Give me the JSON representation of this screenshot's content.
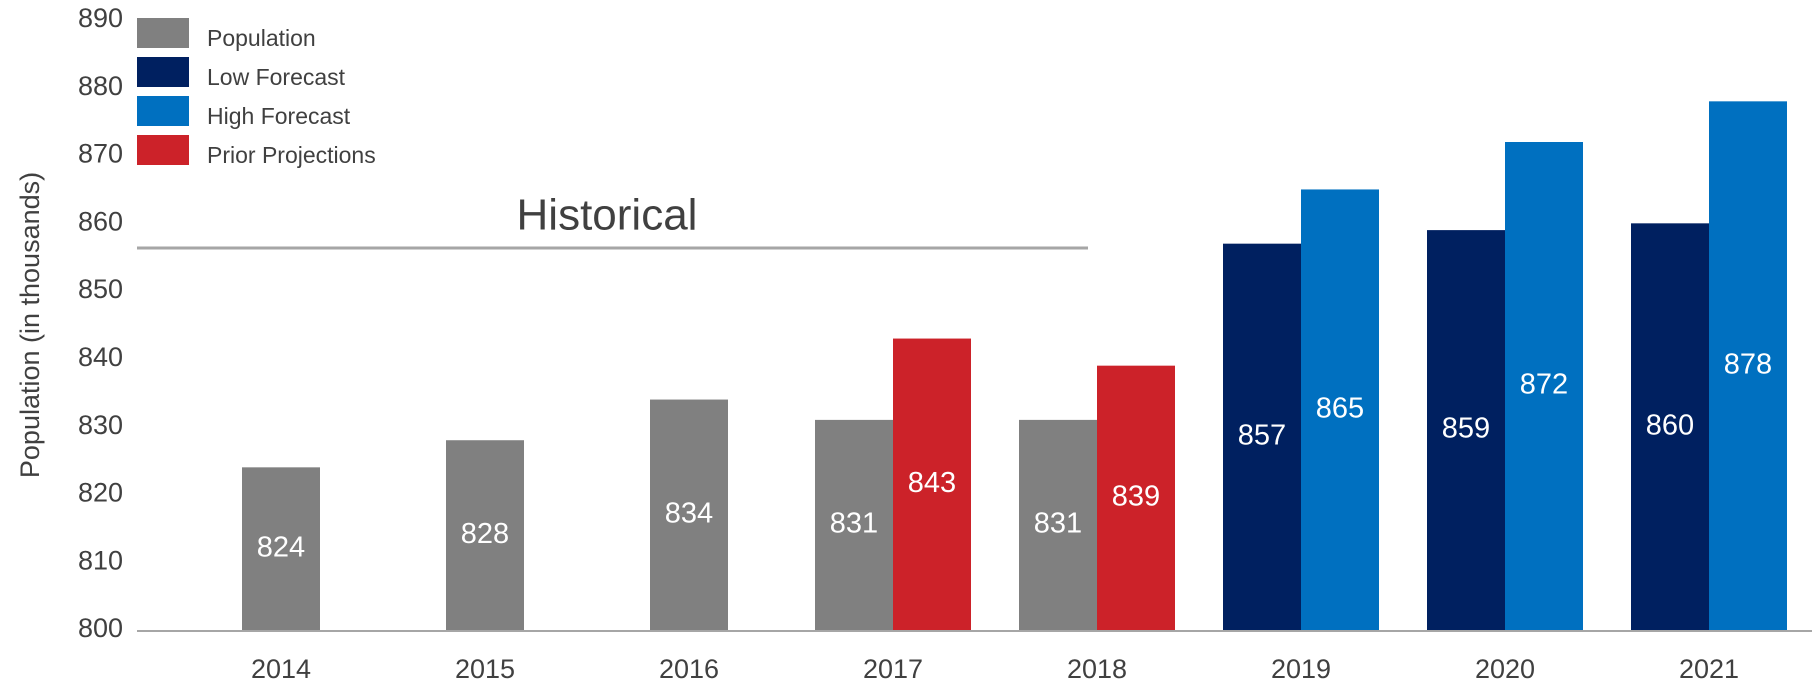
{
  "chart_data": {
    "type": "bar",
    "ylabel": "Population (in thousands)",
    "annotation": "Historical",
    "categories": [
      "2014",
      "2015",
      "2016",
      "2017",
      "2018",
      "2019",
      "2020",
      "2021"
    ],
    "series": [
      {
        "name": "Population",
        "color": "#808080",
        "values": [
          824,
          828,
          834,
          831,
          831,
          null,
          null,
          null
        ]
      },
      {
        "name": "Low Forecast",
        "color": "#002060",
        "values": [
          null,
          null,
          null,
          null,
          null,
          857,
          859,
          860
        ]
      },
      {
        "name": "High Forecast",
        "color": "#0070c0",
        "values": [
          null,
          null,
          null,
          null,
          null,
          865,
          872,
          878
        ]
      },
      {
        "name": "Prior Projections",
        "color": "#cc2229",
        "values": [
          null,
          null,
          null,
          843,
          839,
          null,
          null,
          null
        ]
      }
    ],
    "ylim": [
      800,
      890
    ],
    "yticks": [
      800,
      810,
      820,
      830,
      840,
      850,
      860,
      870,
      880,
      890
    ],
    "grid": false
  }
}
